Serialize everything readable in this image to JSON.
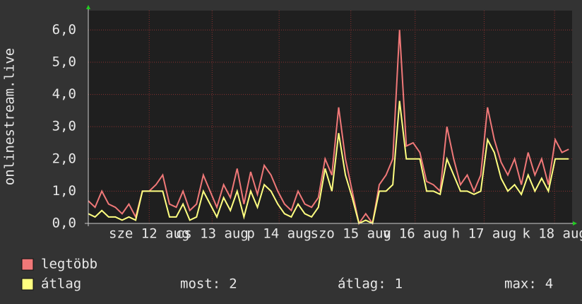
{
  "chart_data": {
    "type": "line",
    "y_label": "onlinestream.live",
    "x": [
      0,
      0.1,
      0.2,
      0.3,
      0.4,
      0.5,
      0.6,
      0.7,
      0.8,
      0.9,
      1.0,
      1.1,
      1.2,
      1.3,
      1.4,
      1.5,
      1.6,
      1.7,
      1.8,
      1.9,
      2.0,
      2.1,
      2.2,
      2.3,
      2.4,
      2.5,
      2.6,
      2.7,
      2.8,
      2.9,
      3.0,
      3.1,
      3.2,
      3.3,
      3.4,
      3.5,
      3.6,
      3.7,
      3.8,
      3.9,
      4.0,
      4.1,
      4.2,
      4.3,
      4.4,
      4.5,
      4.6,
      4.7,
      4.8,
      4.9,
      5.0,
      5.1,
      5.2,
      5.3,
      5.4,
      5.5,
      5.6,
      5.7,
      5.8,
      5.9,
      6.0,
      6.1,
      6.2,
      6.3,
      6.4,
      6.5,
      6.6,
      6.7,
      6.8,
      6.9,
      7.0,
      7.1
    ],
    "series": [
      {
        "name": "legtöbb",
        "color": "#f07878",
        "values": [
          0.7,
          0.5,
          1.0,
          0.6,
          0.5,
          0.3,
          0.6,
          0.2,
          1.0,
          1.0,
          1.2,
          1.5,
          0.6,
          0.5,
          1.0,
          0.4,
          0.6,
          1.5,
          1.0,
          0.5,
          1.2,
          0.8,
          1.7,
          0.6,
          1.6,
          0.9,
          1.8,
          1.5,
          1.0,
          0.6,
          0.4,
          1.0,
          0.6,
          0.5,
          0.8,
          2.0,
          1.5,
          3.6,
          2.0,
          1.0,
          0,
          0.3,
          0,
          1.2,
          1.5,
          2.0,
          6.0,
          2.4,
          2.5,
          2.2,
          1.3,
          1.2,
          1.0,
          3.0,
          2.0,
          1.2,
          1.5,
          1.0,
          1.5,
          3.6,
          2.6,
          1.9,
          1.5,
          2.0,
          1.2,
          2.2,
          1.5,
          2.0,
          1.2,
          2.6,
          2.2,
          2.3
        ]
      },
      {
        "name": "átlag",
        "color": "#ffff80",
        "values": [
          0.3,
          0.2,
          0.4,
          0.2,
          0.2,
          0.1,
          0.2,
          0.1,
          1.0,
          1.0,
          1.0,
          1.0,
          0.2,
          0.2,
          0.6,
          0.1,
          0.2,
          1.0,
          0.6,
          0.2,
          0.8,
          0.4,
          1.0,
          0.2,
          1.0,
          0.5,
          1.2,
          1.0,
          0.6,
          0.3,
          0.2,
          0.6,
          0.3,
          0.2,
          0.5,
          1.7,
          1.0,
          2.8,
          1.5,
          0.8,
          0,
          0.1,
          0,
          1.0,
          1.0,
          1.2,
          3.8,
          2.0,
          2.0,
          2.0,
          1.0,
          1.0,
          0.9,
          2.0,
          1.5,
          1.0,
          1.0,
          0.9,
          1.0,
          2.6,
          2.2,
          1.4,
          1.0,
          1.2,
          0.9,
          1.5,
          1.0,
          1.4,
          1.0,
          2.0,
          2.0,
          2.0
        ]
      }
    ],
    "xlim": [
      0,
      7.15
    ],
    "xticks": [
      {
        "value": 0.9,
        "label": "sze 12 aug"
      },
      {
        "value": 1.83,
        "label": "cs 13 aug"
      },
      {
        "value": 2.82,
        "label": "p 14 aug"
      },
      {
        "value": 3.88,
        "label": "szo 15 aug"
      },
      {
        "value": 4.83,
        "label": "v 16 aug"
      },
      {
        "value": 5.85,
        "label": "h 17 aug"
      },
      {
        "value": 6.89,
        "label": "k 18 aug"
      }
    ],
    "ylim": [
      0,
      6.6
    ],
    "yticks": [
      {
        "value": 0,
        "label": "0,0"
      },
      {
        "value": 1,
        "label": "1,0"
      },
      {
        "value": 2,
        "label": "2,0"
      },
      {
        "value": 3,
        "label": "3,0"
      },
      {
        "value": 4,
        "label": "4,0"
      },
      {
        "value": 5,
        "label": "5,0"
      },
      {
        "value": 6,
        "label": "6,0"
      }
    ],
    "grid": true,
    "stats": [
      {
        "label": "most:",
        "value": 2
      },
      {
        "label": "átlag:",
        "value": 1
      },
      {
        "label": "max:",
        "value": 4
      }
    ]
  }
}
